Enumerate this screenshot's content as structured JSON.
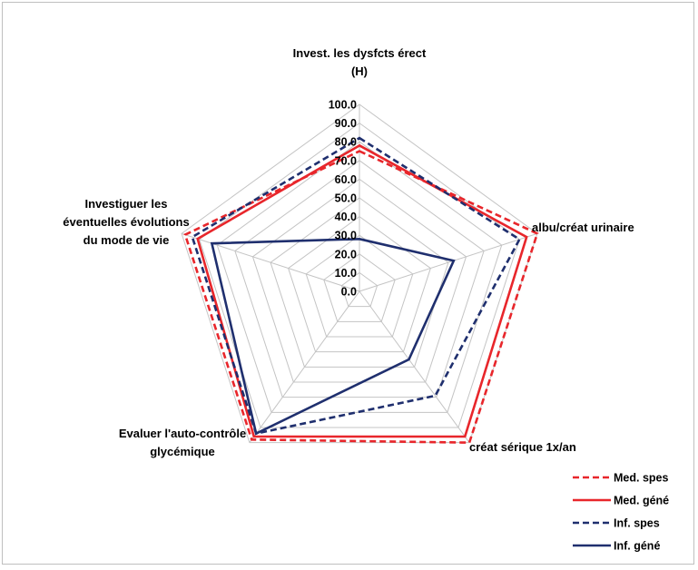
{
  "chart_data": {
    "type": "radar",
    "axes": [
      [
        "Invest. les dysfcts érect",
        "(H)"
      ],
      [
        "albu/créat urinaire"
      ],
      [
        "créat sérique  1x/an"
      ],
      [
        "Evaluer l'auto-contrôle",
        "glycémique"
      ],
      [
        "Investiguer les",
        "éventuelles évolutions",
        "du mode de vie"
      ]
    ],
    "ticks": [
      "0.0",
      "10.0",
      "20.0",
      "30.0",
      "40.0",
      "50.0",
      "60.0",
      "70.0",
      "80.0",
      "90.0",
      "100.0"
    ],
    "rmin": 0,
    "rmax": 100,
    "grid_levels": [
      10,
      20,
      30,
      40,
      50,
      60,
      70,
      80,
      90,
      100
    ],
    "series": [
      {
        "name": "Med. spes",
        "values": [
          75,
          100,
          100,
          98,
          98
        ],
        "color": "#e8262b",
        "dash": true
      },
      {
        "name": "Med. géné",
        "values": [
          78,
          94,
          96,
          96,
          91
        ],
        "color": "#e8262b",
        "dash": false
      },
      {
        "name": "Inf. spes",
        "values": [
          82,
          90,
          69,
          94,
          94
        ],
        "color": "#1f2f6e",
        "dash": true
      },
      {
        "name": "Inf. géné",
        "values": [
          28,
          53,
          45,
          94,
          83
        ],
        "color": "#1f2f6e",
        "dash": false
      }
    ],
    "legend_position": "bottom-right"
  }
}
